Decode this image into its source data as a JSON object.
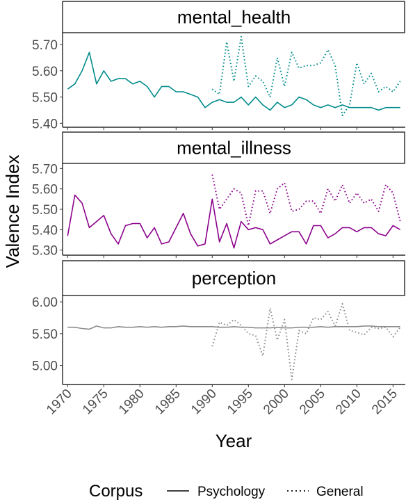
{
  "chart_data": {
    "type": "line",
    "xlabel": "Year",
    "ylabel": "Valence Index",
    "x_ticks": [
      1970,
      1975,
      1980,
      1985,
      1990,
      1995,
      2000,
      2005,
      2010,
      2015
    ],
    "xlim": [
      1969.3,
      2016.7
    ],
    "legend": {
      "title": "Corpus",
      "position": "bottom",
      "entries": [
        {
          "label": "Psychology",
          "linetype": "solid"
        },
        {
          "label": "General",
          "linetype": "dotted"
        }
      ]
    },
    "panels": [
      {
        "title": "mental_health",
        "color": "#008b8b",
        "ylim": [
          5.385,
          5.745
        ],
        "y_ticks": [
          "5.70",
          "5.60",
          "5.50",
          "5.40"
        ],
        "series": [
          {
            "name": "Psychology",
            "linetype": "solid",
            "x": [
              1970,
              1971,
              1972,
              1973,
              1974,
              1975,
              1976,
              1977,
              1978,
              1979,
              1980,
              1981,
              1982,
              1983,
              1984,
              1985,
              1986,
              1987,
              1988,
              1989,
              1990,
              1991,
              1992,
              1993,
              1994,
              1995,
              1996,
              1997,
              1998,
              1999,
              2000,
              2001,
              2002,
              2003,
              2004,
              2005,
              2006,
              2007,
              2008,
              2009,
              2010,
              2011,
              2012,
              2013,
              2014,
              2015,
              2016
            ],
            "y": [
              5.53,
              5.55,
              5.6,
              5.67,
              5.55,
              5.6,
              5.56,
              5.57,
              5.57,
              5.55,
              5.56,
              5.54,
              5.5,
              5.54,
              5.54,
              5.52,
              5.52,
              5.51,
              5.5,
              5.46,
              5.48,
              5.49,
              5.48,
              5.48,
              5.5,
              5.47,
              5.5,
              5.47,
              5.45,
              5.48,
              5.46,
              5.47,
              5.5,
              5.49,
              5.47,
              5.46,
              5.47,
              5.46,
              5.47,
              5.46,
              5.46,
              5.46,
              5.46,
              5.45,
              5.46,
              5.46,
              5.46
            ]
          },
          {
            "name": "General",
            "linetype": "dotted",
            "x": [
              1990,
              1991,
              1992,
              1993,
              1994,
              1995,
              1996,
              1997,
              1998,
              1999,
              2000,
              2001,
              2002,
              2003,
              2004,
              2005,
              2006,
              2007,
              2008,
              2009,
              2010,
              2011,
              2012,
              2013,
              2014,
              2015,
              2016
            ],
            "y": [
              5.53,
              5.51,
              5.71,
              5.56,
              5.73,
              5.54,
              5.58,
              5.56,
              5.5,
              5.65,
              5.54,
              5.67,
              5.61,
              5.62,
              5.62,
              5.63,
              5.68,
              5.62,
              5.43,
              5.47,
              5.63,
              5.55,
              5.59,
              5.52,
              5.54,
              5.52,
              5.56
            ]
          }
        ]
      },
      {
        "title": "mental_illness",
        "color": "#8b008b",
        "ylim": [
          5.275,
          5.725
        ],
        "y_ticks": [
          "5.70",
          "5.60",
          "5.50",
          "5.40",
          "5.30"
        ],
        "series": [
          {
            "name": "Psychology",
            "linetype": "solid",
            "x": [
              1970,
              1971,
              1972,
              1973,
              1974,
              1975,
              1976,
              1977,
              1978,
              1979,
              1980,
              1981,
              1982,
              1983,
              1984,
              1985,
              1986,
              1987,
              1988,
              1989,
              1990,
              1991,
              1992,
              1993,
              1994,
              1995,
              1996,
              1997,
              1998,
              1999,
              2000,
              2001,
              2002,
              2003,
              2004,
              2005,
              2006,
              2007,
              2008,
              2009,
              2010,
              2011,
              2012,
              2013,
              2014,
              2015,
              2016
            ],
            "y": [
              5.37,
              5.57,
              5.53,
              5.41,
              5.44,
              5.47,
              5.38,
              5.33,
              5.42,
              5.43,
              5.43,
              5.36,
              5.41,
              5.33,
              5.34,
              5.41,
              5.48,
              5.38,
              5.32,
              5.33,
              5.55,
              5.34,
              5.43,
              5.31,
              5.44,
              5.4,
              5.41,
              5.4,
              5.33,
              5.35,
              5.37,
              5.39,
              5.39,
              5.33,
              5.42,
              5.42,
              5.36,
              5.38,
              5.41,
              5.41,
              5.39,
              5.41,
              5.41,
              5.38,
              5.37,
              5.42,
              5.4
            ]
          },
          {
            "name": "General",
            "linetype": "dotted",
            "x": [
              1990,
              1991,
              1992,
              1993,
              1994,
              1995,
              1996,
              1997,
              1998,
              1999,
              2000,
              2001,
              2002,
              2003,
              2004,
              2005,
              2006,
              2007,
              2008,
              2009,
              2010,
              2011,
              2012,
              2013,
              2014,
              2015,
              2016
            ],
            "y": [
              5.67,
              5.5,
              5.55,
              5.6,
              5.58,
              5.42,
              5.59,
              5.59,
              5.48,
              5.6,
              5.63,
              5.49,
              5.5,
              5.54,
              5.54,
              5.48,
              5.6,
              5.54,
              5.62,
              5.53,
              5.58,
              5.53,
              5.55,
              5.49,
              5.62,
              5.58,
              5.44
            ]
          }
        ]
      },
      {
        "title": "perception",
        "color": "#8c8c8c",
        "ylim": [
          4.7,
          6.1
        ],
        "y_ticks": [
          "6.00",
          "5.50",
          "5.00"
        ],
        "series": [
          {
            "name": "Psychology",
            "linetype": "solid",
            "x": [
              1970,
              1971,
              1972,
              1973,
              1974,
              1975,
              1976,
              1977,
              1978,
              1979,
              1980,
              1981,
              1982,
              1983,
              1984,
              1985,
              1986,
              1987,
              1988,
              1989,
              1990,
              1991,
              1992,
              1993,
              1994,
              1995,
              1996,
              1997,
              1998,
              1999,
              2000,
              2001,
              2002,
              2003,
              2004,
              2005,
              2006,
              2007,
              2008,
              2009,
              2010,
              2011,
              2012,
              2013,
              2014,
              2015,
              2016
            ],
            "y": [
              5.6,
              5.6,
              5.58,
              5.57,
              5.62,
              5.59,
              5.59,
              5.61,
              5.6,
              5.6,
              5.61,
              5.6,
              5.61,
              5.6,
              5.61,
              5.61,
              5.62,
              5.61,
              5.61,
              5.61,
              5.61,
              5.6,
              5.6,
              5.61,
              5.6,
              5.6,
              5.59,
              5.59,
              5.59,
              5.6,
              5.59,
              5.59,
              5.6,
              5.6,
              5.6,
              5.61,
              5.6,
              5.61,
              5.61,
              5.61,
              5.61,
              5.62,
              5.62,
              5.61,
              5.61,
              5.61,
              5.61
            ]
          },
          {
            "name": "General",
            "linetype": "dotted",
            "x": [
              1990,
              1991,
              1992,
              1993,
              1994,
              1995,
              1996,
              1997,
              1998,
              1999,
              2000,
              2001,
              2002,
              2003,
              2004,
              2005,
              2006,
              2007,
              2008,
              2009,
              2010,
              2011,
              2012,
              2013,
              2014,
              2015,
              2016
            ],
            "y": [
              5.3,
              5.68,
              5.63,
              5.72,
              5.63,
              5.5,
              5.47,
              5.15,
              5.9,
              5.4,
              5.72,
              4.78,
              5.55,
              5.5,
              5.75,
              5.72,
              5.85,
              5.62,
              5.97,
              5.55,
              5.52,
              5.48,
              5.6,
              5.58,
              5.6,
              5.45,
              5.6
            ]
          }
        ]
      }
    ]
  }
}
